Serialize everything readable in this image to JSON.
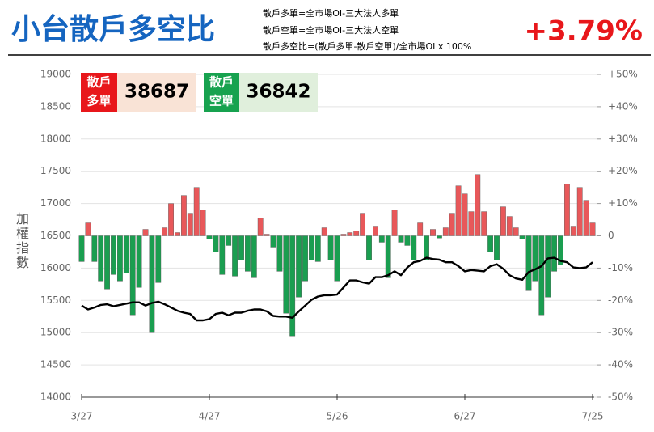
{
  "chart_data": {
    "type": "combo",
    "title": "小台散戶多空比",
    "notes": [
      "散戶多單=全市場OI-三大法人多單",
      "散戶空單=全市場OI-三大法人空單",
      "散戶多空比=(散戶多單-散戶空單)/全市場OI x 100%"
    ],
    "headline": "+3.79%",
    "ylabel": "加權指數",
    "boxes": [
      {
        "label_lines": [
          "散戶",
          "多單"
        ],
        "value": 38687,
        "color": "#e8171b",
        "background": "#f9e3d6"
      },
      {
        "label_lines": [
          "散戶",
          "空單"
        ],
        "value": 36842,
        "color": "#17a24f",
        "background": "#e0efdc"
      }
    ],
    "categories": [
      "3/27",
      null,
      null,
      null,
      null,
      null,
      null,
      null,
      null,
      null,
      null,
      null,
      null,
      null,
      null,
      null,
      null,
      null,
      null,
      null,
      "4/27",
      null,
      null,
      null,
      null,
      null,
      null,
      null,
      null,
      null,
      null,
      null,
      null,
      null,
      null,
      null,
      null,
      null,
      null,
      null,
      "5/26",
      null,
      null,
      null,
      null,
      null,
      null,
      null,
      null,
      null,
      null,
      null,
      null,
      null,
      null,
      null,
      null,
      null,
      null,
      null,
      "6/27",
      null,
      null,
      null,
      null,
      null,
      null,
      null,
      null,
      null,
      null,
      null,
      null,
      null,
      null,
      null,
      null,
      null,
      null,
      null,
      "7/25"
    ],
    "series": [
      {
        "type": "bar",
        "axis": "y2",
        "color": "#e8585a",
        "negative_color": "#1a9e50",
        "values": [
          -8,
          4,
          -8,
          -14,
          -16.5,
          -12,
          -14,
          -11.5,
          -24.5,
          -16,
          2,
          -30,
          -14.5,
          2.5,
          10,
          1,
          12.5,
          7,
          15,
          8,
          -1,
          -5,
          -12,
          -3,
          -12.5,
          -7.5,
          -11,
          -13,
          5.5,
          0.5,
          -3.5,
          -11,
          -24,
          -31,
          -19,
          -14,
          -7.5,
          -8,
          2.5,
          -7.5,
          -14,
          0.5,
          1,
          1.5,
          7,
          -7.5,
          3,
          -2,
          -13,
          8,
          -2,
          -3,
          -7.5,
          4,
          -7.5,
          2,
          -0.7,
          2.5,
          7,
          15.5,
          13,
          7.5,
          19,
          7.5,
          -5,
          -7.5,
          9,
          6,
          2.5,
          -1,
          -17,
          -14,
          -24.5,
          -19,
          -11,
          -9,
          16,
          3,
          15,
          11,
          4
        ]
      },
      {
        "type": "line",
        "color": "#000000",
        "values": [
          15420,
          15360,
          15390,
          15430,
          15440,
          15410,
          15430,
          15450,
          15470,
          15470,
          15420,
          15460,
          15480,
          15440,
          15390,
          15340,
          15310,
          15290,
          15190,
          15190,
          15210,
          15290,
          15310,
          15270,
          15310,
          15310,
          15340,
          15360,
          15360,
          15330,
          15260,
          15250,
          15250,
          15230,
          15330,
          15420,
          15510,
          15560,
          15580,
          15580,
          15590,
          15700,
          15810,
          15810,
          15780,
          15760,
          15860,
          15860,
          15890,
          15950,
          15890,
          16010,
          16090,
          16110,
          16160,
          16140,
          16130,
          16090,
          16090,
          16030,
          15950,
          15970,
          15960,
          15950,
          16030,
          16060,
          15990,
          15890,
          15840,
          15820,
          15940,
          15980,
          16030,
          16150,
          16160,
          16110,
          16090,
          16010,
          16000,
          16010,
          16090
        ]
      }
    ],
    "ylim": [
      14000,
      19000
    ],
    "yticks": [
      14000,
      14500,
      15000,
      15500,
      16000,
      16500,
      17000,
      17500,
      18000,
      18500,
      19000
    ],
    "y2lim": [
      -50,
      50
    ],
    "y2ticks": [
      {
        "value": -50,
        "label": "-50%"
      },
      {
        "value": -40,
        "label": "-40%"
      },
      {
        "value": -30,
        "label": "-30%"
      },
      {
        "value": -20,
        "label": "-20%"
      },
      {
        "value": -10,
        "label": "-10%"
      },
      0,
      {
        "value": 10,
        "label": "+10%"
      },
      {
        "value": 20,
        "label": "+20%"
      },
      {
        "value": 30,
        "label": "+30%"
      },
      {
        "value": 40,
        "label": "+40%"
      },
      {
        "value": 50,
        "label": "+50%"
      }
    ],
    "grid": true,
    "title_color": "#1565c0",
    "headline_color": "#e8171b"
  }
}
